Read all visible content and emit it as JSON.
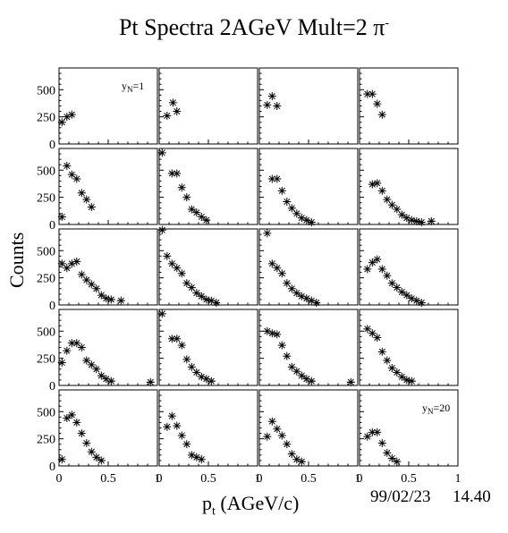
{
  "title_main": "Pt Spectra 2AGeV Mult=2 ",
  "title_particle": "π",
  "title_charge": "-",
  "ylabel": "Counts",
  "xlabel_main": "p",
  "xlabel_sub": "t",
  "xlabel_unit": " (AGeV/c)",
  "date": "99/02/23",
  "time": "14.40",
  "chart_data": {
    "type": "scatter",
    "layout": "5 rows x 4 columns of panels",
    "marker": "asterisk",
    "xlim": [
      0,
      1
    ],
    "ylim": [
      0,
      700
    ],
    "x_ticks": [
      0,
      0.5,
      1
    ],
    "x_tick_labels": [
      "0",
      "0.5",
      "1"
    ],
    "y_ticks": [
      0,
      250,
      500
    ],
    "y_tick_labels": [
      "0",
      "250",
      "500"
    ],
    "annotations": [
      {
        "panel": 0,
        "text": "y",
        "sub": "N",
        "suffix": "=1"
      },
      {
        "panel": 19,
        "text": "y",
        "sub": "N",
        "suffix": "=20"
      }
    ],
    "panels": [
      {
        "points": [
          [
            0.03,
            200
          ],
          [
            0.08,
            250
          ],
          [
            0.13,
            270
          ]
        ]
      },
      {
        "points": [
          [
            0.08,
            260
          ],
          [
            0.14,
            380
          ],
          [
            0.18,
            300
          ]
        ]
      },
      {
        "points": [
          [
            0.08,
            360
          ],
          [
            0.13,
            440
          ],
          [
            0.18,
            350
          ]
        ]
      },
      {
        "points": [
          [
            0.08,
            460
          ],
          [
            0.13,
            460
          ],
          [
            0.18,
            370
          ],
          [
            0.23,
            270
          ]
        ]
      },
      {
        "points": [
          [
            0.03,
            70
          ],
          [
            0.08,
            540
          ],
          [
            0.13,
            460
          ],
          [
            0.18,
            420
          ],
          [
            0.23,
            290
          ],
          [
            0.28,
            230
          ],
          [
            0.33,
            160
          ]
        ]
      },
      {
        "points": [
          [
            0.03,
            660
          ],
          [
            0.13,
            470
          ],
          [
            0.18,
            470
          ],
          [
            0.23,
            340
          ],
          [
            0.28,
            250
          ],
          [
            0.33,
            140
          ],
          [
            0.38,
            110
          ],
          [
            0.43,
            70
          ],
          [
            0.48,
            40
          ]
        ]
      },
      {
        "points": [
          [
            0.13,
            420
          ],
          [
            0.18,
            420
          ],
          [
            0.23,
            310
          ],
          [
            0.28,
            210
          ],
          [
            0.33,
            150
          ],
          [
            0.38,
            100
          ],
          [
            0.43,
            60
          ],
          [
            0.48,
            40
          ],
          [
            0.53,
            20
          ]
        ]
      },
      {
        "points": [
          [
            0.13,
            370
          ],
          [
            0.18,
            380
          ],
          [
            0.23,
            310
          ],
          [
            0.28,
            230
          ],
          [
            0.33,
            180
          ],
          [
            0.38,
            140
          ],
          [
            0.43,
            90
          ],
          [
            0.48,
            60
          ],
          [
            0.53,
            40
          ],
          [
            0.58,
            30
          ],
          [
            0.63,
            20
          ],
          [
            0.73,
            30
          ]
        ]
      },
      {
        "points": [
          [
            0.03,
            380
          ],
          [
            0.08,
            340
          ],
          [
            0.13,
            380
          ],
          [
            0.18,
            400
          ],
          [
            0.23,
            280
          ],
          [
            0.28,
            230
          ],
          [
            0.33,
            190
          ],
          [
            0.38,
            150
          ],
          [
            0.43,
            90
          ],
          [
            0.48,
            60
          ],
          [
            0.53,
            50
          ],
          [
            0.63,
            40
          ]
        ]
      },
      {
        "points": [
          [
            0.03,
            690
          ],
          [
            0.08,
            450
          ],
          [
            0.13,
            380
          ],
          [
            0.18,
            340
          ],
          [
            0.23,
            290
          ],
          [
            0.28,
            200
          ],
          [
            0.33,
            160
          ],
          [
            0.38,
            110
          ],
          [
            0.43,
            80
          ],
          [
            0.48,
            50
          ],
          [
            0.53,
            40
          ],
          [
            0.58,
            20
          ]
        ]
      },
      {
        "points": [
          [
            0.08,
            660
          ],
          [
            0.13,
            380
          ],
          [
            0.18,
            340
          ],
          [
            0.23,
            290
          ],
          [
            0.28,
            200
          ],
          [
            0.33,
            150
          ],
          [
            0.38,
            110
          ],
          [
            0.43,
            80
          ],
          [
            0.48,
            60
          ],
          [
            0.53,
            40
          ],
          [
            0.58,
            20
          ]
        ]
      },
      {
        "points": [
          [
            0.08,
            330
          ],
          [
            0.13,
            390
          ],
          [
            0.18,
            420
          ],
          [
            0.23,
            330
          ],
          [
            0.28,
            270
          ],
          [
            0.33,
            200
          ],
          [
            0.38,
            160
          ],
          [
            0.43,
            120
          ],
          [
            0.48,
            90
          ],
          [
            0.53,
            60
          ],
          [
            0.58,
            40
          ],
          [
            0.63,
            20
          ]
        ]
      },
      {
        "points": [
          [
            0.03,
            210
          ],
          [
            0.08,
            320
          ],
          [
            0.13,
            390
          ],
          [
            0.18,
            390
          ],
          [
            0.23,
            350
          ],
          [
            0.28,
            230
          ],
          [
            0.33,
            190
          ],
          [
            0.38,
            150
          ],
          [
            0.43,
            90
          ],
          [
            0.48,
            60
          ],
          [
            0.53,
            40
          ],
          [
            0.93,
            30
          ]
        ]
      },
      {
        "points": [
          [
            0.03,
            660
          ],
          [
            0.13,
            430
          ],
          [
            0.18,
            430
          ],
          [
            0.23,
            370
          ],
          [
            0.28,
            240
          ],
          [
            0.33,
            170
          ],
          [
            0.38,
            120
          ],
          [
            0.43,
            80
          ],
          [
            0.48,
            60
          ],
          [
            0.53,
            40
          ]
        ]
      },
      {
        "points": [
          [
            0.08,
            500
          ],
          [
            0.13,
            480
          ],
          [
            0.18,
            470
          ],
          [
            0.23,
            370
          ],
          [
            0.28,
            270
          ],
          [
            0.33,
            170
          ],
          [
            0.38,
            130
          ],
          [
            0.43,
            90
          ],
          [
            0.48,
            60
          ],
          [
            0.53,
            40
          ],
          [
            0.93,
            30
          ]
        ]
      },
      {
        "points": [
          [
            0.08,
            520
          ],
          [
            0.13,
            480
          ],
          [
            0.18,
            440
          ],
          [
            0.23,
            310
          ],
          [
            0.28,
            230
          ],
          [
            0.33,
            160
          ],
          [
            0.38,
            120
          ],
          [
            0.43,
            80
          ],
          [
            0.48,
            50
          ],
          [
            0.53,
            40
          ]
        ]
      },
      {
        "points": [
          [
            0.03,
            60
          ],
          [
            0.08,
            440
          ],
          [
            0.13,
            470
          ],
          [
            0.18,
            400
          ],
          [
            0.23,
            300
          ],
          [
            0.28,
            210
          ],
          [
            0.33,
            130
          ],
          [
            0.38,
            80
          ],
          [
            0.43,
            50
          ]
        ]
      },
      {
        "points": [
          [
            0.08,
            360
          ],
          [
            0.13,
            460
          ],
          [
            0.18,
            370
          ],
          [
            0.23,
            280
          ],
          [
            0.28,
            200
          ],
          [
            0.33,
            100
          ],
          [
            0.38,
            80
          ],
          [
            0.43,
            60
          ]
        ]
      },
      {
        "points": [
          [
            0.08,
            270
          ],
          [
            0.13,
            410
          ],
          [
            0.18,
            340
          ],
          [
            0.23,
            280
          ],
          [
            0.28,
            200
          ],
          [
            0.33,
            110
          ],
          [
            0.38,
            60
          ],
          [
            0.43,
            40
          ]
        ]
      },
      {
        "points": [
          [
            0.08,
            270
          ],
          [
            0.13,
            310
          ],
          [
            0.18,
            310
          ],
          [
            0.23,
            210
          ],
          [
            0.28,
            120
          ],
          [
            0.33,
            70
          ],
          [
            0.38,
            40
          ]
        ]
      }
    ]
  }
}
